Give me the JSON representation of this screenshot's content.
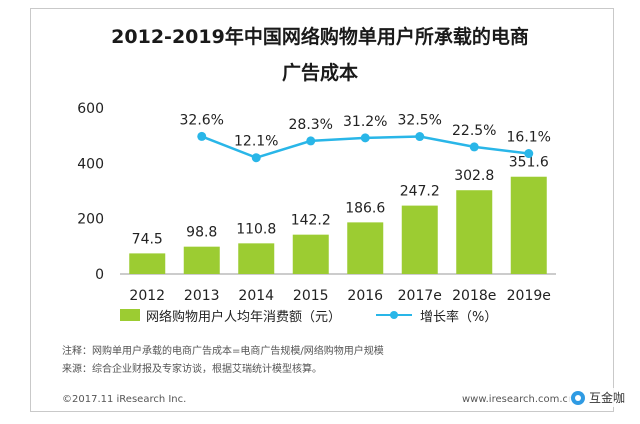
{
  "header": {
    "title_line1": "2012-2019年中国网络购物单用户所承载的电商",
    "title_line2": "广告成本"
  },
  "chart_data": {
    "type": "bar",
    "categories": [
      "2012",
      "2013",
      "2014",
      "2015",
      "2016",
      "2017e",
      "2018e",
      "2019e"
    ],
    "series": [
      {
        "name": "网络购物用户人均年消费额（元）",
        "type": "bar",
        "values": [
          74.5,
          98.8,
          110.8,
          142.2,
          186.6,
          247.2,
          302.8,
          351.6
        ],
        "labels": [
          "74.5",
          "98.8",
          "110.8",
          "142.2",
          "186.6",
          "247.2",
          "302.8",
          "351.6"
        ],
        "color": "#9ccc32"
      },
      {
        "name": "增长率（%）",
        "type": "line",
        "values": [
          null,
          32.6,
          12.1,
          28.3,
          31.2,
          32.5,
          22.5,
          16.1
        ],
        "labels": [
          "",
          "32.6%",
          "12.1%",
          "28.3%",
          "31.2%",
          "32.5%",
          "22.5%",
          "16.1%"
        ],
        "color": "#29b6e8"
      }
    ],
    "yticks": [
      "0",
      "200",
      "400",
      "600"
    ],
    "ylim": [
      0,
      600
    ],
    "y2lim": [
      -100,
      60
    ],
    "legend_position": "bottom"
  },
  "legend": {
    "bar_label": "网络购物用户人均年消费额（元）",
    "line_label": "增长率（%）"
  },
  "notes": {
    "note1": "注释：网购单用户承载的电商广告成本=电商广告规模/网络购物用户规模",
    "note2": "来源：综合企业财报及专家访谈，根据艾瑞统计模型核算。"
  },
  "footer": {
    "copyright": "©2017.11 iResearch Inc.",
    "website": "www.iresearch.com.cn",
    "watermark": "互金咖"
  }
}
